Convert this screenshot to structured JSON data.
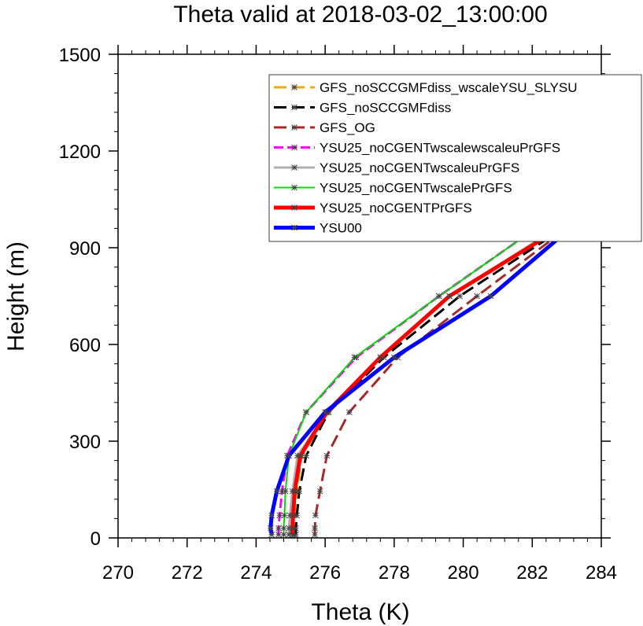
{
  "colors": {
    "background": "#ffffff",
    "axes": "#000000"
  },
  "chart_data": {
    "type": "line",
    "title": "Theta valid at 2018-03-02_13:00:00",
    "xlabel": "Theta (K)",
    "ylabel": "Height (m)",
    "xlim": [
      270,
      284
    ],
    "ylim": [
      0,
      1500
    ],
    "xticks": [
      270,
      272,
      274,
      276,
      278,
      280,
      282,
      284
    ],
    "yticks": [
      0,
      300,
      600,
      900,
      1200,
      1500
    ],
    "grid": false,
    "legend_position": "top-right",
    "series": [
      {
        "name": "GFS_noSCCGMFdiss_wscaleYSU_SLYSU",
        "color": "#ffa500",
        "dash": "long-dash",
        "width": 3,
        "points": [
          [
            275.1,
            10
          ],
          [
            275.1,
            30
          ],
          [
            275.12,
            70
          ],
          [
            275.18,
            145
          ],
          [
            275.32,
            255
          ],
          [
            276.1,
            390
          ],
          [
            277.6,
            560
          ],
          [
            279.6,
            750
          ],
          [
            282.8,
            960
          ],
          [
            284,
            1080
          ]
        ]
      },
      {
        "name": "GFS_noSCCGMFdiss",
        "color": "#000000",
        "dash": "long-dash",
        "width": 3,
        "points": [
          [
            275.15,
            10
          ],
          [
            275.15,
            30
          ],
          [
            275.18,
            70
          ],
          [
            275.25,
            145
          ],
          [
            275.45,
            255
          ],
          [
            276.1,
            390
          ],
          [
            277.7,
            560
          ],
          [
            279.9,
            750
          ],
          [
            282.9,
            960
          ],
          [
            284,
            1100
          ]
        ]
      },
      {
        "name": "GFS_OG",
        "color": "#a52a2a",
        "dash": "long-dash",
        "width": 3,
        "points": [
          [
            275.7,
            10
          ],
          [
            275.7,
            30
          ],
          [
            275.72,
            70
          ],
          [
            275.85,
            145
          ],
          [
            276.05,
            255
          ],
          [
            276.7,
            390
          ],
          [
            278.1,
            560
          ],
          [
            280.4,
            750
          ],
          [
            283,
            960
          ],
          [
            284,
            1090
          ]
        ]
      },
      {
        "name": "YSU25_noCGENTwscalewscaleuPrGFS",
        "color": "#ff00ff",
        "dash": "dash",
        "width": 3,
        "points": [
          [
            274.65,
            10
          ],
          [
            274.65,
            30
          ],
          [
            274.68,
            70
          ],
          [
            274.75,
            145
          ],
          [
            274.9,
            255
          ],
          [
            275.45,
            390
          ],
          [
            276.9,
            560
          ],
          [
            279.3,
            750
          ],
          [
            282.1,
            960
          ],
          [
            284,
            1150
          ]
        ]
      },
      {
        "name": "YSU25_noCGENTwscaleuPrGFS",
        "color": "#b0b0b0",
        "dash": "solid",
        "width": 3,
        "points": [
          [
            274.95,
            10
          ],
          [
            274.95,
            30
          ],
          [
            274.98,
            70
          ],
          [
            275.05,
            145
          ],
          [
            275.2,
            255
          ],
          [
            276.05,
            390
          ],
          [
            277.6,
            560
          ],
          [
            279.6,
            750
          ],
          [
            282.7,
            960
          ],
          [
            284,
            1085
          ]
        ]
      },
      {
        "name": "YSU25_noCGENTwscalePrGFS",
        "color": "#00dd00",
        "dash": "solid",
        "width": 2,
        "points": [
          [
            274.8,
            10
          ],
          [
            274.8,
            30
          ],
          [
            274.82,
            70
          ],
          [
            274.85,
            145
          ],
          [
            274.95,
            255
          ],
          [
            275.45,
            390
          ],
          [
            276.85,
            560
          ],
          [
            279.3,
            750
          ],
          [
            282.1,
            960
          ],
          [
            284,
            1150
          ]
        ]
      },
      {
        "name": "YSU25_noCGENTPrGFS",
        "color": "#ff0000",
        "dash": "solid",
        "width": 5,
        "points": [
          [
            275.05,
            10
          ],
          [
            275.05,
            30
          ],
          [
            275.07,
            70
          ],
          [
            275.12,
            145
          ],
          [
            275.28,
            255
          ],
          [
            276.05,
            390
          ],
          [
            277.6,
            560
          ],
          [
            279.6,
            750
          ],
          [
            282.8,
            960
          ],
          [
            284,
            1085
          ]
        ]
      },
      {
        "name": "YSU00",
        "color": "#0000ff",
        "dash": "solid",
        "width": 5,
        "points": [
          [
            274.45,
            10
          ],
          [
            274.42,
            30
          ],
          [
            274.45,
            70
          ],
          [
            274.6,
            145
          ],
          [
            274.95,
            255
          ],
          [
            276,
            390
          ],
          [
            278,
            560
          ],
          [
            280.8,
            750
          ],
          [
            283.1,
            960
          ],
          [
            284,
            1070
          ]
        ]
      }
    ]
  }
}
